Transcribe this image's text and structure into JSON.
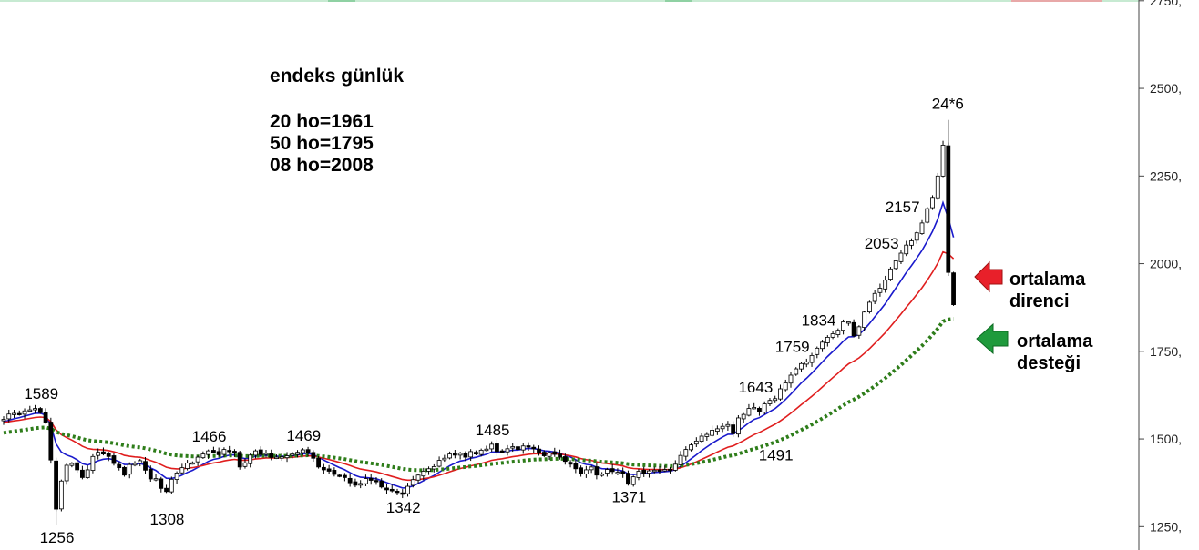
{
  "info": {
    "title": "endeks günlük",
    "lines": [
      "20 ho=1961",
      "50 ho=1795",
      "08 ho=2008"
    ]
  },
  "callouts": {
    "resistance": [
      "ortalama",
      "direnci"
    ],
    "support": [
      "ortalama",
      "desteği"
    ],
    "resistance_color": "#e8202a",
    "support_color": "#1f9a3c"
  },
  "colors": {
    "ma8": "#1a1acc",
    "ma20": "#e01e1e",
    "ma50": "#2e7d1a",
    "candle": "#000000"
  },
  "chart_data": {
    "type": "line",
    "title": "",
    "xlabel": "",
    "ylabel": "",
    "ylim": [
      1215,
      2760
    ],
    "y_ticks": [
      "1250,",
      "1500,",
      "1750,",
      "2000,",
      "2250,",
      "2500,",
      "2750,"
    ],
    "candles": {
      "count": 182,
      "closes": [
        1556,
        1571,
        1573,
        1572,
        1580,
        1583,
        1587,
        1575,
        1548,
        1440,
        1300,
        1380,
        1425,
        1430,
        1412,
        1390,
        1412,
        1450,
        1462,
        1457,
        1450,
        1430,
        1418,
        1397,
        1427,
        1430,
        1438,
        1411,
        1386,
        1387,
        1359,
        1350,
        1385,
        1403,
        1418,
        1431,
        1432,
        1448,
        1457,
        1466,
        1462,
        1455,
        1470,
        1465,
        1460,
        1420,
        1432,
        1454,
        1466,
        1455,
        1460,
        1447,
        1448,
        1449,
        1452,
        1457,
        1462,
        1469,
        1461,
        1445,
        1420,
        1412,
        1408,
        1399,
        1395,
        1390,
        1375,
        1368,
        1373,
        1387,
        1382,
        1380,
        1363,
        1355,
        1352,
        1348,
        1342,
        1365,
        1384,
        1397,
        1408,
        1415,
        1421,
        1439,
        1445,
        1457,
        1456,
        1459,
        1448,
        1464,
        1457,
        1468,
        1471,
        1485,
        1464,
        1464,
        1472,
        1478,
        1470,
        1480,
        1479,
        1472,
        1460,
        1452,
        1461,
        1456,
        1448,
        1436,
        1428,
        1415,
        1400,
        1412,
        1420,
        1397,
        1400,
        1413,
        1407,
        1405,
        1400,
        1371,
        1392,
        1408,
        1402,
        1409,
        1411,
        1408,
        1413,
        1412,
        1428,
        1453,
        1470,
        1483,
        1494,
        1508,
        1513,
        1525,
        1529,
        1536,
        1541,
        1515,
        1560,
        1570,
        1587,
        1590,
        1578,
        1600,
        1610,
        1615,
        1643,
        1660,
        1682,
        1700,
        1715,
        1720,
        1738,
        1759,
        1776,
        1790,
        1800,
        1810,
        1834,
        1834,
        1794,
        1820,
        1862,
        1890,
        1915,
        1930,
        1953,
        1985,
        2008,
        2030,
        2053,
        2065,
        2088,
        2116,
        2157,
        2189,
        2250,
        2338,
        1975,
        1883
      ],
      "day_low": 1256,
      "day_high": 2410
    },
    "series": [
      {
        "name": "08 ho",
        "smoothing": 8,
        "last_value": 2008
      },
      {
        "name": "20 ho",
        "smoothing": 20,
        "last_value": 1961
      },
      {
        "name": "50 ho",
        "smoothing": 50,
        "last_value": 1795
      }
    ],
    "annotations": [
      {
        "text": "1589",
        "x": 7,
        "y": 1589
      },
      {
        "text": "1256",
        "x": 10,
        "y": 1256
      },
      {
        "text": "1466",
        "x": 39,
        "y": 1466
      },
      {
        "text": "1308",
        "x": 31,
        "y": 1308
      },
      {
        "text": "1469",
        "x": 57,
        "y": 1469
      },
      {
        "text": "1342",
        "x": 76,
        "y": 1342
      },
      {
        "text": "1485",
        "x": 93,
        "y": 1485
      },
      {
        "text": "1371",
        "x": 119,
        "y": 1371
      },
      {
        "text": "1491",
        "x": 147,
        "y": 1491
      },
      {
        "text": "1643",
        "x": 148,
        "y": 1643
      },
      {
        "text": "1759",
        "x": 155,
        "y": 1759
      },
      {
        "text": "1834",
        "x": 160,
        "y": 1834
      },
      {
        "text": "2053",
        "x": 172,
        "y": 2053
      },
      {
        "text": "2157",
        "x": 176,
        "y": 2157
      },
      {
        "text": "24*6",
        "x": 180,
        "y": 2410
      }
    ]
  }
}
